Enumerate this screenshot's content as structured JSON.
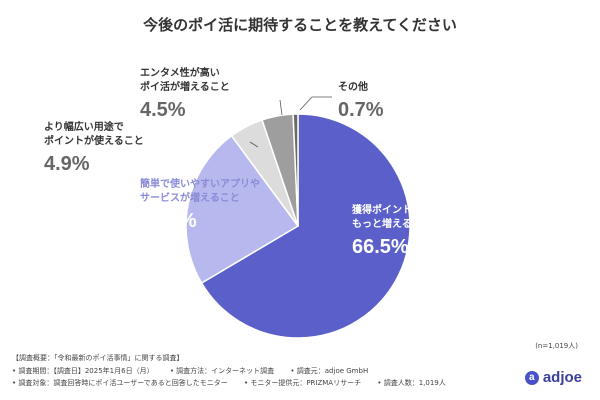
{
  "chart_data": {
    "type": "pie",
    "title": "今後のポイ活に期待することを教えてください",
    "slices": [
      {
        "lines": [
          "獲得ポイントが",
          "もっと増えること"
        ],
        "value_label": "66.5%",
        "value": 66.5,
        "color": "#5a5fc9"
      },
      {
        "lines": [
          "簡単で使いやすいアプリや",
          "サービスが増えること"
        ],
        "value_label": "23.4%",
        "value": 23.4,
        "color": "#b7b8ee"
      },
      {
        "lines": [
          "より幅広い用途で",
          "ポイントが使えること"
        ],
        "value_label": "4.9%",
        "value": 4.9,
        "color": "#dcdcdc"
      },
      {
        "lines": [
          "エンタメ性が高い",
          "ポイ活が増えること"
        ],
        "value_label": "4.5%",
        "value": 4.5,
        "color": "#9e9e9e"
      },
      {
        "lines": [
          "その他"
        ],
        "value_label": "0.7%",
        "value": 0.7,
        "color": "#6b6b6b"
      }
    ]
  },
  "sample_note": "(n=1,019人)",
  "footer": {
    "line1": "【調査概要：「令和最新のポイ活事情」に関する調査】",
    "line2": [
      "• 調査期間：【調査日】2025年1月6日（月）",
      "• 調査方法：インターネット調査",
      "• 調査元：adjoe GmbH"
    ],
    "line3": [
      "• 調査対象：調査回答時にポイ活ユーザーであると回答したモニター",
      "• モニター提供元：PRIZMAリサーチ",
      "• 調査人数：1,019人"
    ]
  },
  "brand": {
    "logo_text": "adjoe",
    "logo_icon": "a-circle-icon"
  }
}
